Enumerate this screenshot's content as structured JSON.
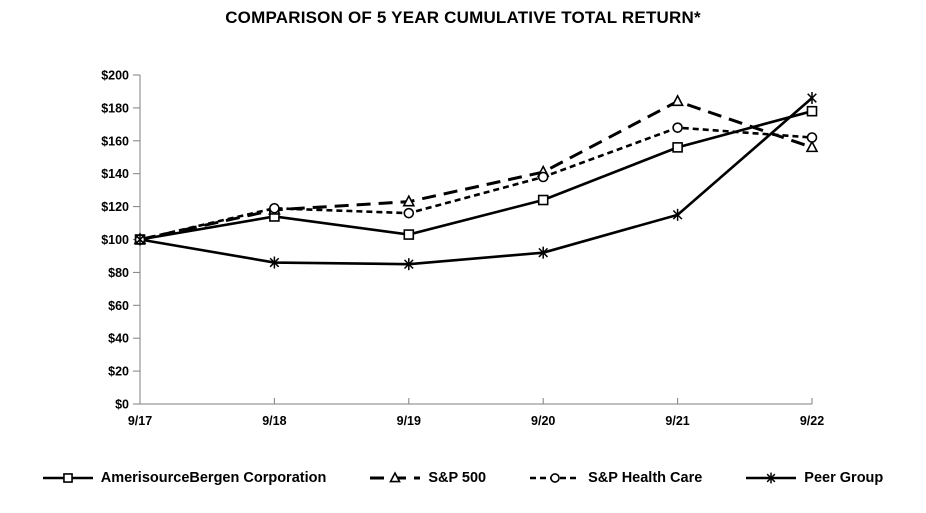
{
  "chart_data": {
    "type": "line",
    "title": "COMPARISON OF 5 YEAR CUMULATIVE TOTAL RETURN*",
    "xlabel": "",
    "ylabel": "",
    "categories": [
      "9/17",
      "9/18",
      "9/19",
      "9/20",
      "9/21",
      "9/22"
    ],
    "series": [
      {
        "name": "AmerisourceBergen Corporation",
        "marker": "square",
        "line": "solid",
        "values": [
          100,
          114,
          103,
          124,
          156,
          178
        ]
      },
      {
        "name": "S&P 500",
        "marker": "triangle",
        "line": "long-dash",
        "values": [
          100,
          118,
          123,
          141,
          184,
          156
        ]
      },
      {
        "name": "S&P Health Care",
        "marker": "circle",
        "line": "short-dash",
        "values": [
          100,
          119,
          116,
          138,
          168,
          162
        ]
      },
      {
        "name": "Peer Group",
        "marker": "asterisk",
        "line": "solid",
        "values": [
          100,
          86,
          85,
          92,
          115,
          186
        ]
      }
    ],
    "ylim": [
      0,
      200
    ],
    "y_tick_step": 20,
    "y_tick_labels": [
      "$0",
      "$20",
      "$40",
      "$60",
      "$80",
      "$100",
      "$120",
      "$140",
      "$160",
      "$180",
      "$200"
    ],
    "grid": "off",
    "legend_position": "bottom",
    "colors": {
      "series_stroke": "#000000",
      "axis": "#7f7f7f",
      "marker_fill": "#ffffff",
      "background": "#ffffff",
      "text": "#000000"
    }
  }
}
